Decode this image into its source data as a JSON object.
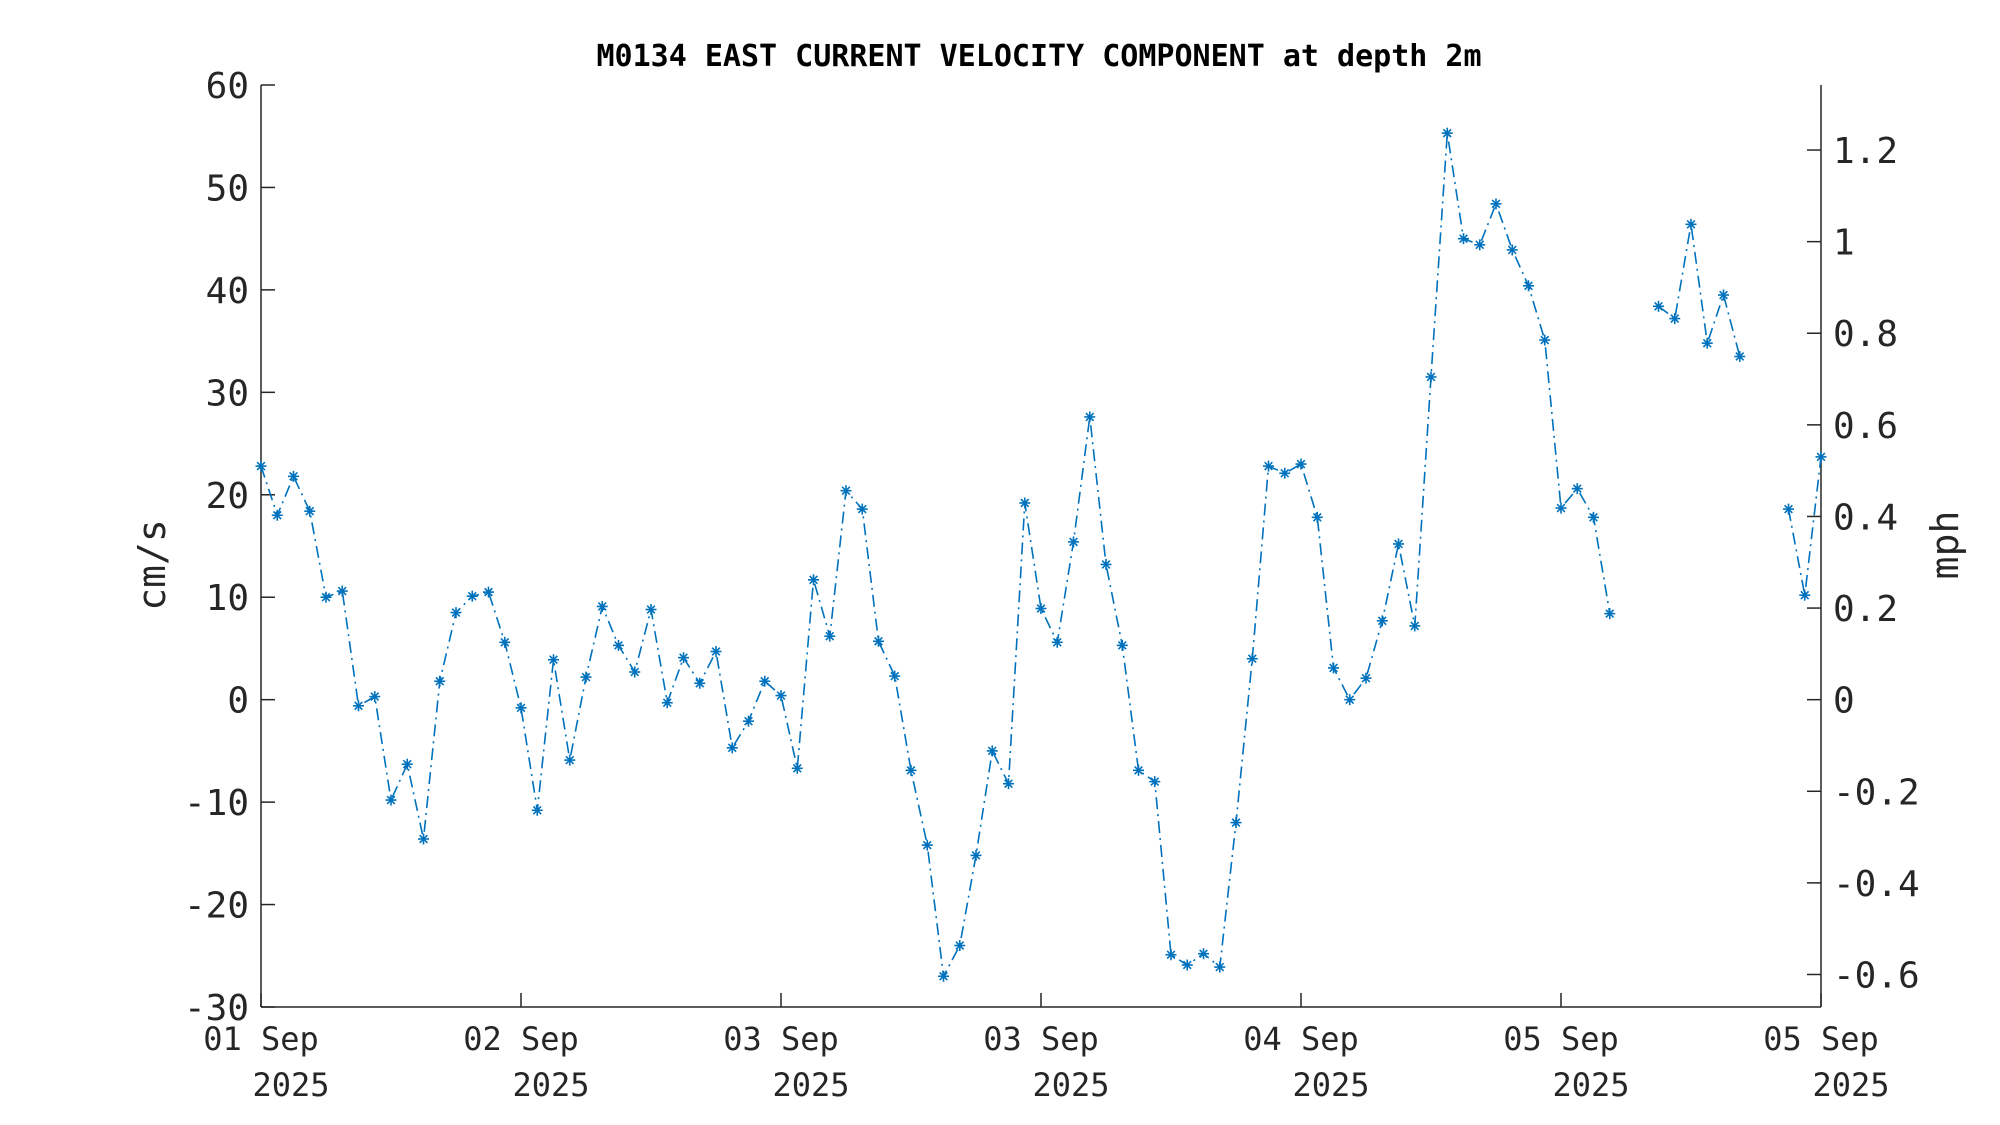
{
  "chart_data": {
    "type": "line",
    "title": "M0134 EAST CURRENT VELOCITY COMPONENT at depth 2m",
    "ylabel": "cm/s",
    "ylabel_right": "mph",
    "ylim": [
      -30,
      60
    ],
    "yticks": [
      -30,
      -20,
      -10,
      0,
      10,
      20,
      30,
      40,
      50,
      60
    ],
    "ylim_right": [
      -0.671,
      1.342
    ],
    "yticks_right": [
      -0.6,
      -0.4,
      -0.2,
      0,
      0.2,
      0.4,
      0.6,
      0.8,
      1,
      1.2
    ],
    "yticks_right_labels": [
      "-0.6",
      "-0.4",
      "-0.2",
      "0",
      "0.2",
      "0.4",
      "0.6",
      "0.8",
      "1",
      "1.2"
    ],
    "xlim": [
      0,
      96
    ],
    "xticks": [
      {
        "x": 0,
        "label": [
          "01 Sep",
          "2025"
        ]
      },
      {
        "x": 16,
        "label": [
          "02 Sep",
          "2025"
        ]
      },
      {
        "x": 32,
        "label": [
          "03 Sep",
          "2025"
        ]
      },
      {
        "x": 48,
        "label": [
          "03 Sep",
          "2025"
        ]
      },
      {
        "x": 64,
        "label": [
          "04 Sep",
          "2025"
        ]
      },
      {
        "x": 80,
        "label": [
          "05 Sep",
          "2025"
        ]
      },
      {
        "x": 96,
        "label": [
          "05 Sep",
          "2025"
        ]
      }
    ],
    "marker": "asterisk",
    "line_style": "dash-dot",
    "grid": false,
    "colors": {
      "series": "#0072BD",
      "axis": "#262626",
      "title": "#000000"
    },
    "series": [
      {
        "x": [
          0,
          1,
          2,
          3,
          4,
          5,
          6,
          7,
          8,
          9,
          10,
          11,
          12,
          13,
          14,
          15,
          16,
          17,
          18,
          19,
          20,
          21,
          22,
          23,
          24,
          25,
          26,
          27,
          28,
          29,
          30,
          31,
          32,
          33,
          34,
          35,
          36,
          37,
          38,
          39,
          40,
          41,
          42,
          43,
          44,
          45,
          46,
          47,
          48,
          49,
          50,
          51,
          52,
          53,
          54,
          55,
          56,
          57,
          58,
          59,
          60,
          61,
          62,
          63,
          64,
          65,
          66,
          67,
          68,
          69,
          70,
          71,
          72,
          73,
          74,
          75,
          76,
          77,
          78,
          79,
          80,
          81,
          82,
          83,
          84,
          85,
          86,
          87,
          88,
          89,
          90,
          91,
          92,
          93,
          94,
          95,
          96
        ],
        "values": [
          22.8,
          18.0,
          21.8,
          18.4,
          10.0,
          10.6,
          -0.6,
          0.3,
          -9.8,
          -6.3,
          -13.6,
          1.8,
          8.5,
          10.1,
          10.5,
          5.6,
          -0.8,
          -10.8,
          3.9,
          -5.9,
          2.2,
          9.1,
          5.3,
          2.7,
          8.8,
          -0.3,
          4.1,
          1.6,
          4.7,
          -4.7,
          -2.1,
          1.8,
          0.4,
          -6.7,
          11.7,
          6.2,
          20.4,
          18.6,
          5.7,
          2.3,
          -6.9,
          -14.2,
          -27.0,
          -24.0,
          -15.2,
          -5.0,
          -8.2,
          19.2,
          8.9,
          5.6,
          15.4,
          27.6,
          13.2,
          5.3,
          -6.9,
          -8.0,
          -24.9,
          -25.9,
          -24.8,
          -26.1,
          -12.0,
          4.0,
          22.8,
          22.1,
          23.0,
          17.8,
          3.1,
          0.0,
          2.1,
          7.7,
          15.2,
          7.2,
          31.5,
          55.3,
          45.0,
          44.4,
          48.4,
          43.9,
          40.4,
          35.1,
          18.7,
          20.6,
          17.8,
          8.4,
          null,
          null,
          38.4,
          37.2,
          46.4,
          34.8,
          39.5,
          33.5,
          null,
          null,
          18.6,
          10.2,
          23.7
        ]
      }
    ]
  }
}
